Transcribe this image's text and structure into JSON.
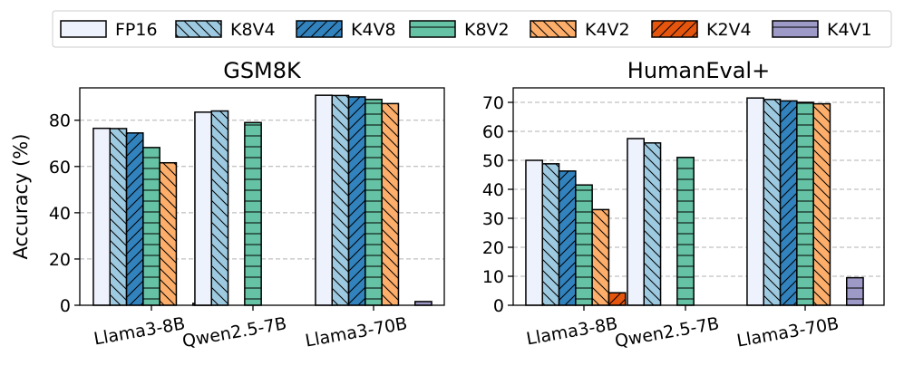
{
  "chart_data": [
    {
      "type": "bar",
      "title": "GSM8K",
      "ylabel": "Accuracy (%)",
      "xlabel": "",
      "ylim": [
        0,
        94
      ],
      "yticks": [
        0,
        20,
        40,
        60,
        80
      ],
      "grid": "horizontal-dashed",
      "categories": [
        "Llama3-8B",
        "Qwen2.5-7B",
        "Llama3-70B"
      ],
      "series": [
        {
          "name": "FP16",
          "values": [
            76.5,
            83.5,
            90.8
          ]
        },
        {
          "name": "K8V4",
          "values": [
            76.4,
            84.0,
            90.7
          ]
        },
        {
          "name": "K4V8",
          "values": [
            74.5,
            null,
            90.1
          ]
        },
        {
          "name": "K8V2",
          "values": [
            68.2,
            79.0,
            89.0
          ]
        },
        {
          "name": "K4V2",
          "values": [
            61.6,
            null,
            87.2
          ]
        },
        {
          "name": "K2V4",
          "values": [
            null,
            null,
            null
          ]
        },
        {
          "name": "K4V1",
          "values": [
            0.8,
            null,
            1.6
          ]
        }
      ]
    },
    {
      "type": "bar",
      "title": "HumanEval+",
      "ylabel": "",
      "xlabel": "",
      "ylim": [
        0,
        75
      ],
      "yticks": [
        0,
        10,
        20,
        30,
        40,
        50,
        60,
        70
      ],
      "grid": "horizontal-dashed",
      "categories": [
        "Llama3-8B",
        "Qwen2.5-7B",
        "Llama3-70B"
      ],
      "series": [
        {
          "name": "FP16",
          "values": [
            50.0,
            57.5,
            71.5
          ]
        },
        {
          "name": "K8V4",
          "values": [
            48.8,
            56.0,
            71.0
          ]
        },
        {
          "name": "K4V8",
          "values": [
            46.3,
            null,
            70.5
          ]
        },
        {
          "name": "K8V2",
          "values": [
            41.5,
            51.0,
            70.0
          ]
        },
        {
          "name": "K4V2",
          "values": [
            33.0,
            null,
            69.5
          ]
        },
        {
          "name": "K2V4",
          "values": [
            4.3,
            null,
            null
          ]
        },
        {
          "name": "K4V1",
          "values": [
            null,
            null,
            9.5
          ]
        }
      ]
    }
  ],
  "legend": {
    "placement": "top",
    "items": [
      {
        "name": "FP16",
        "color": "#eef2fd",
        "hatch": "none"
      },
      {
        "name": "K8V4",
        "color": "#9ecae1",
        "hatch": "backslash"
      },
      {
        "name": "K4V8",
        "color": "#3182bd",
        "hatch": "slash"
      },
      {
        "name": "K8V2",
        "color": "#66c2a4",
        "hatch": "horizontal"
      },
      {
        "name": "K4V2",
        "color": "#fdae6b",
        "hatch": "backslash"
      },
      {
        "name": "K2V4",
        "color": "#e6550d",
        "hatch": "slash"
      },
      {
        "name": "K4V1",
        "color": "#9e9ac8",
        "hatch": "horizontal"
      }
    ]
  }
}
